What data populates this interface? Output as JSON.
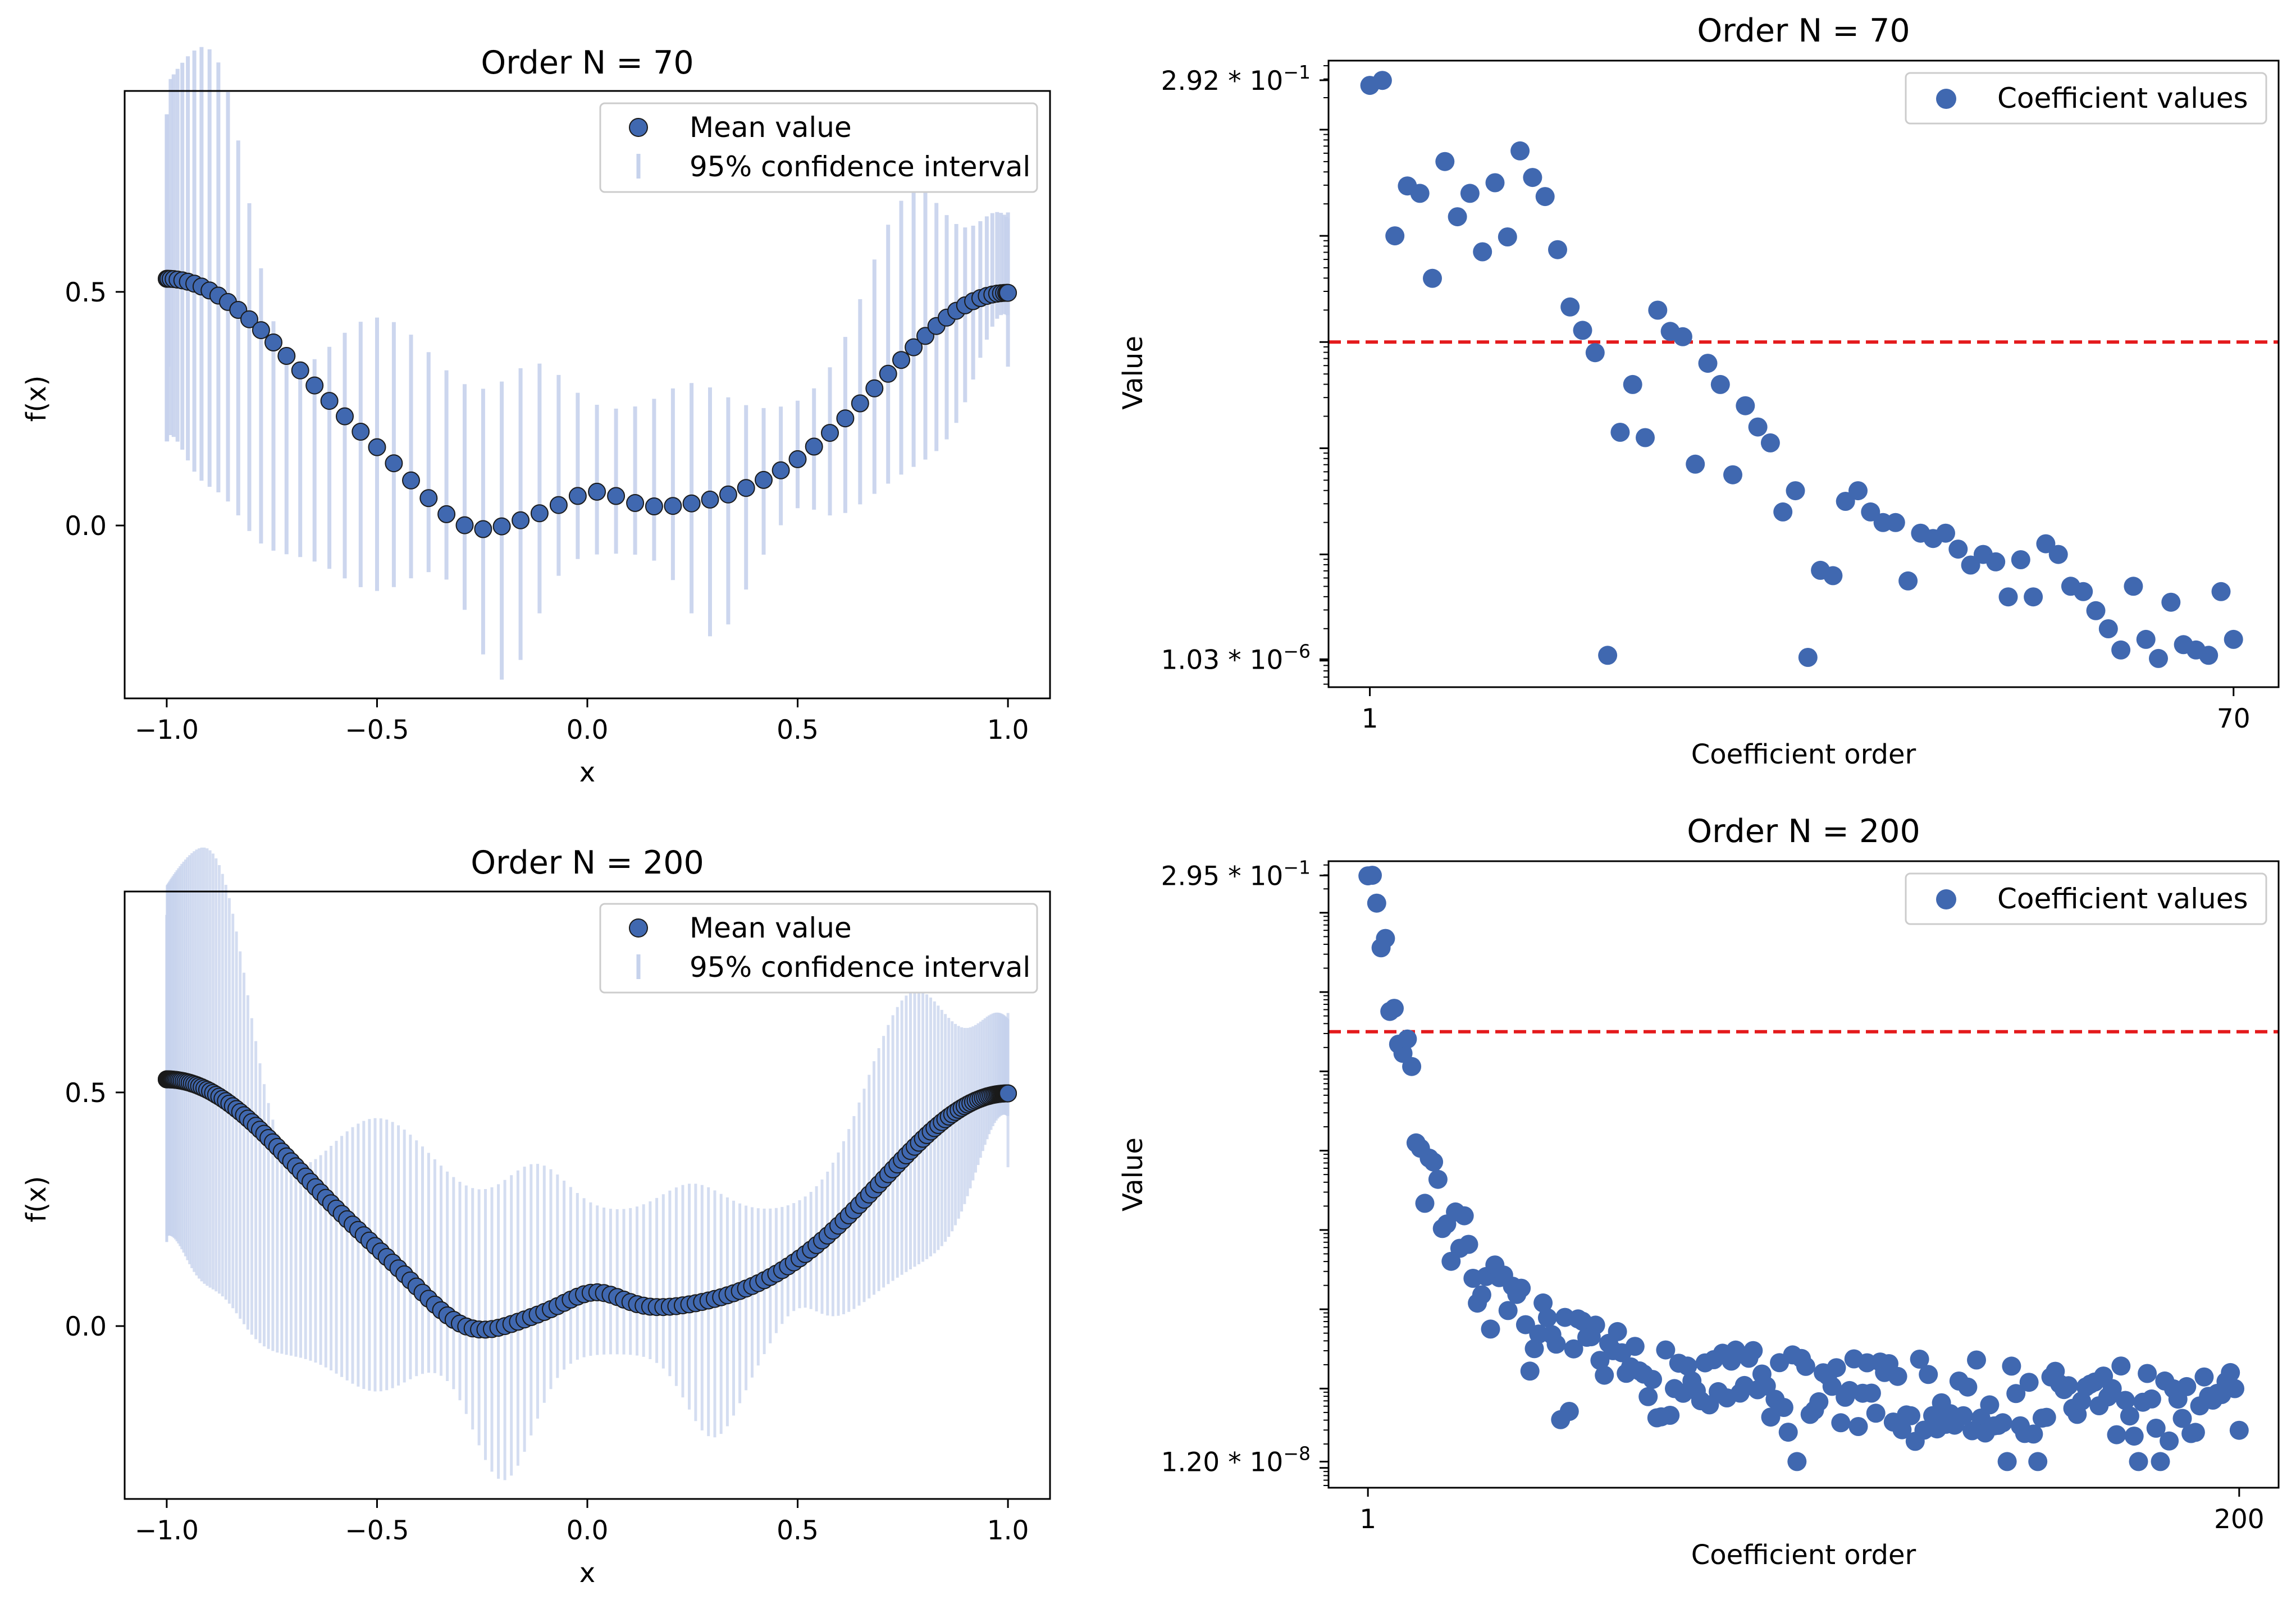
{
  "colors": {
    "point": "#4068b0",
    "point_edge_dark": "#1a1a1a",
    "ci": "#c6d2ec",
    "threshold": "#e41a1c"
  },
  "chart_data": [
    {
      "id": "fx-70",
      "type": "scatter",
      "title": "Order N = 70",
      "xlabel": "x",
      "ylabel": "f(x)",
      "xlim": [
        -1.1,
        1.1
      ],
      "ylim": [
        -0.37,
        0.93
      ],
      "xticks": [
        {
          "v": -1.0,
          "label": "−1.0"
        },
        {
          "v": -0.5,
          "label": "−0.5"
        },
        {
          "v": 0.0,
          "label": "0.0"
        },
        {
          "v": 0.5,
          "label": "0.5"
        },
        {
          "v": 1.0,
          "label": "1.0"
        }
      ],
      "yticks": [
        {
          "v": 0.0,
          "label": "0.0"
        },
        {
          "v": 0.5,
          "label": "0.5"
        }
      ],
      "legend": {
        "position": "upper right",
        "entries": [
          "Mean value",
          "95% confidence interval"
        ]
      },
      "n_points": 70,
      "ci_ends": {
        "lo": [
          0.18,
          0.18,
          0.34
        ],
        "hi": [
          0.88,
          0.88,
          0.67
        ]
      }
    },
    {
      "id": "coef-70",
      "type": "scatter",
      "yscale": "log",
      "title": "Order N = 70",
      "xlabel": "Coefficient order",
      "ylabel": "Value",
      "xlim": [
        -2.3,
        73.6
      ],
      "ylim_log10": [
        -6.25,
        -0.35
      ],
      "xticks": [
        {
          "v": 1,
          "label": "1"
        },
        {
          "v": 70,
          "label": "70"
        }
      ],
      "yticks": [
        {
          "log10": -0.5346,
          "base": "2.92 * 10",
          "exp": "−1"
        },
        {
          "log10": -5.9872,
          "base": "1.03 * 10",
          "exp": "−6"
        }
      ],
      "threshold_log10": -3.0,
      "legend": {
        "position": "upper right",
        "entries": [
          "Coefficient values"
        ]
      },
      "log10_values": [
        -0.583,
        -0.536,
        -2.0,
        -1.53,
        -1.6,
        -2.4,
        -1.3,
        -1.82,
        -1.6,
        -2.15,
        -1.5,
        -2.01,
        -1.2,
        -1.45,
        -1.63,
        -2.13,
        -2.67,
        -2.89,
        -3.1,
        -5.95,
        -3.85,
        -3.4,
        -3.9,
        -2.7,
        -2.9,
        -2.95,
        -4.15,
        -3.2,
        -3.4,
        -4.25,
        -3.6,
        -3.8,
        -3.95,
        -4.6,
        -4.4,
        -5.97,
        -5.15,
        -5.2,
        -4.5,
        -4.4,
        -4.6,
        -4.7,
        -4.7,
        -5.25,
        -4.8,
        -4.85,
        -4.8,
        -4.95,
        -5.1,
        -5.0,
        -5.07,
        -5.4,
        -5.05,
        -5.4,
        -4.9,
        -5.0,
        -5.3,
        -5.35,
        -5.53,
        -5.7,
        -5.9,
        -5.3,
        -5.8,
        -5.98,
        -5.45,
        -5.85,
        -5.9,
        -5.95,
        -5.35,
        -5.8
      ]
    },
    {
      "id": "fx-200",
      "type": "scatter",
      "title": "Order N = 200",
      "xlabel": "x",
      "ylabel": "f(x)",
      "xlim": [
        -1.1,
        1.1
      ],
      "ylim": [
        -0.37,
        0.93
      ],
      "xticks": [
        {
          "v": -1.0,
          "label": "−1.0"
        },
        {
          "v": -0.5,
          "label": "−0.5"
        },
        {
          "v": 0.0,
          "label": "0.0"
        },
        {
          "v": 0.5,
          "label": "0.5"
        },
        {
          "v": 1.0,
          "label": "1.0"
        }
      ],
      "yticks": [
        {
          "v": 0.0,
          "label": "0.0"
        },
        {
          "v": 0.5,
          "label": "0.5"
        }
      ],
      "legend": {
        "position": "upper right",
        "entries": [
          "Mean value",
          "95% confidence interval"
        ]
      },
      "n_points": 200,
      "ci_ends": {
        "lo": [
          0.18,
          0.18,
          0.34
        ],
        "hi": [
          0.88,
          0.88,
          0.67
        ]
      }
    },
    {
      "id": "coef-200",
      "type": "scatter",
      "yscale": "log",
      "title": "Order N = 200",
      "xlabel": "Coefficient order",
      "ylabel": "Value",
      "xlim": [
        -8,
        209
      ],
      "ylim_log10": [
        -8.25,
        -0.35
      ],
      "xticks": [
        {
          "v": 1,
          "label": "1"
        },
        {
          "v": 200,
          "label": "200"
        }
      ],
      "yticks": [
        {
          "log10": -0.5302,
          "base": "2.95 * 10",
          "exp": "−1"
        },
        {
          "log10": -7.9208,
          "base": "1.20 * 10",
          "exp": "−8"
        }
      ],
      "threshold_log10": -2.5,
      "legend": {
        "position": "upper right",
        "entries": [
          "Coefficient values"
        ]
      },
      "seed": 7
    }
  ]
}
